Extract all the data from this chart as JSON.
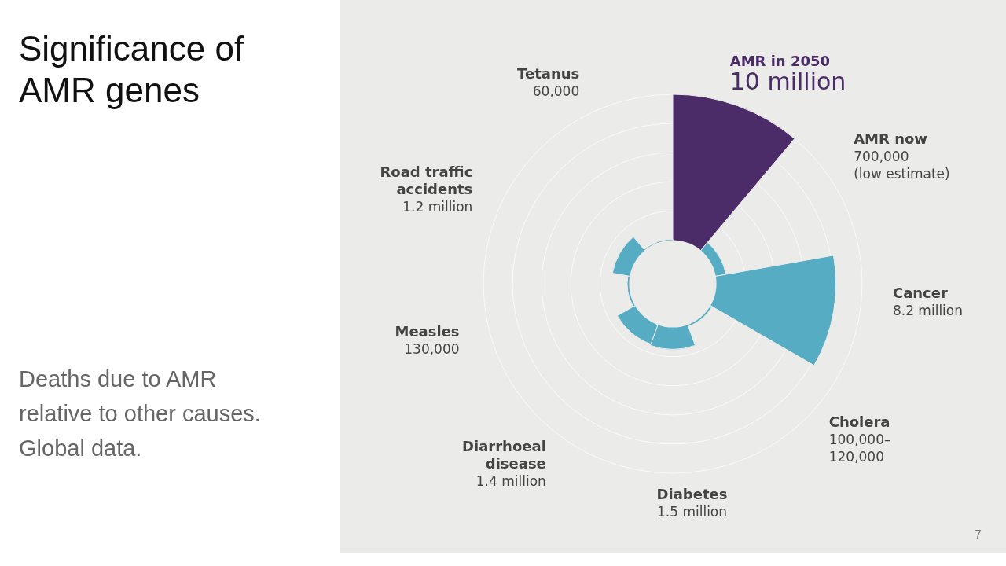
{
  "chart_data": {
    "type": "other",
    "title": "Significance of AMR genes",
    "subtitle": "Deaths due to AMR relative to other causes. Global data.",
    "categories": [
      "AMR in 2050",
      "AMR now",
      "Cancer",
      "Cholera",
      "Diabetes",
      "Diarrhoeal\ndisease",
      "Measles",
      "Road traffic\naccidents",
      "Tetanus"
    ],
    "values": [
      10000000,
      700000,
      8200000,
      120000,
      1500000,
      1400000,
      130000,
      1200000,
      60000
    ],
    "value_labels": [
      "10 million",
      "700,000\n(low estimate)",
      "8.2 million",
      "100,000–\n120,000",
      "1.5 million",
      "1.4 million",
      "130,000",
      "1.2 million",
      "60,000"
    ],
    "colors": [
      "#4b2c69",
      "#55acc3",
      "#55acc3",
      "#55acc3",
      "#55acc3",
      "#55acc3",
      "#55acc3",
      "#55acc3",
      "#55acc3"
    ],
    "annotations": [
      "7"
    ],
    "legend": false
  }
}
